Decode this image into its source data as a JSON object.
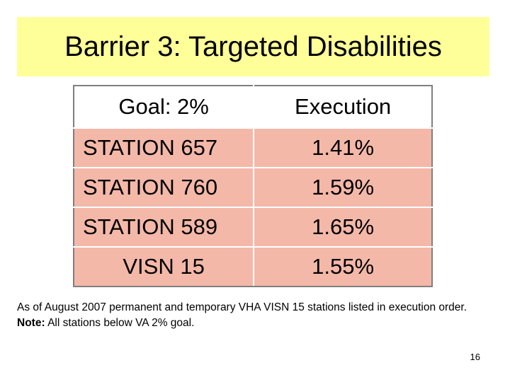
{
  "title": "Barrier 3: Targeted Disabilities",
  "table": {
    "header": {
      "goal": "Goal: 2%",
      "execution": "Execution"
    },
    "rows": [
      {
        "station": "STATION 657",
        "value": "1.41%"
      },
      {
        "station": "STATION 760",
        "value": "1.59%"
      },
      {
        "station": "STATION 589",
        "value": "1.65%"
      },
      {
        "station": "VISN 15",
        "value": "1.55%"
      }
    ]
  },
  "note": {
    "text": "As of August 2007 permanent and temporary VHA VISN 15 stations listed in execution order.",
    "bold_label": "Note:",
    "bold_rest": "All stations below VA 2% goal."
  },
  "page_number": "16",
  "colors": {
    "title_bg": "#ffff99",
    "row_bg": "#f4b8a8"
  }
}
